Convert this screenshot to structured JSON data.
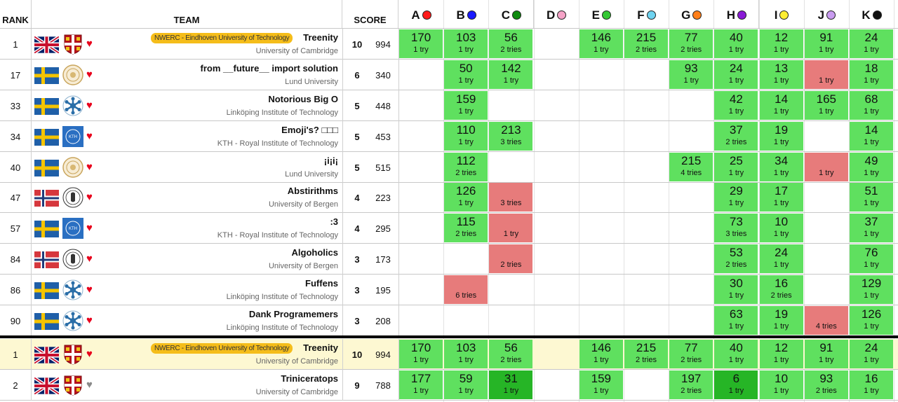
{
  "header": {
    "rank": "RANK",
    "team": "TEAM",
    "score": "SCORE",
    "problems": [
      {
        "letter": "A",
        "color": "#ff1a1a"
      },
      {
        "letter": "B",
        "color": "#1a1aff"
      },
      {
        "letter": "C",
        "color": "#0f8a0f"
      },
      {
        "letter": "D",
        "color": "#f5a3c7"
      },
      {
        "letter": "E",
        "color": "#34c734"
      },
      {
        "letter": "F",
        "color": "#6fd3f0"
      },
      {
        "letter": "G",
        "color": "#ff7f1a"
      },
      {
        "letter": "H",
        "color": "#8a1ad6"
      },
      {
        "letter": "I",
        "color": "#ffee33"
      },
      {
        "letter": "J",
        "color": "#c99cf0"
      },
      {
        "letter": "K",
        "color": "#111111"
      }
    ]
  },
  "rows": [
    {
      "rank": "1",
      "flag": "gb",
      "crest": "cambridge",
      "heart": "red",
      "badge": "NWERC - Eindhoven University of Technology",
      "name": "Treenity",
      "university": "University of Cambridge",
      "solved": "10",
      "penalty": "994",
      "highlight": false,
      "cells": [
        [
          "ok",
          "170",
          "1 try"
        ],
        [
          "ok",
          "103",
          "1 try"
        ],
        [
          "ok",
          "56",
          "2 tries"
        ],
        [
          "none",
          "",
          ""
        ],
        [
          "ok",
          "146",
          "1 try"
        ],
        [
          "ok",
          "215",
          "2 tries"
        ],
        [
          "ok",
          "77",
          "2 tries"
        ],
        [
          "ok",
          "40",
          "1 try"
        ],
        [
          "ok",
          "12",
          "1 try"
        ],
        [
          "ok",
          "91",
          "1 try"
        ],
        [
          "ok",
          "24",
          "1 try"
        ]
      ]
    },
    {
      "rank": "17",
      "flag": "se",
      "crest": "lund",
      "heart": "red",
      "badge": "",
      "name": "from __future__ import solution",
      "university": "Lund University",
      "solved": "6",
      "penalty": "340",
      "highlight": false,
      "cells": [
        [
          "none",
          "",
          ""
        ],
        [
          "ok",
          "50",
          "1 try"
        ],
        [
          "ok",
          "142",
          "1 try"
        ],
        [
          "none",
          "",
          ""
        ],
        [
          "none",
          "",
          ""
        ],
        [
          "none",
          "",
          ""
        ],
        [
          "ok",
          "93",
          "1 try"
        ],
        [
          "ok",
          "24",
          "1 try"
        ],
        [
          "ok",
          "13",
          "1 try"
        ],
        [
          "fail",
          "",
          "1 try"
        ],
        [
          "ok",
          "18",
          "1 try"
        ]
      ]
    },
    {
      "rank": "33",
      "flag": "se",
      "crest": "liu",
      "heart": "red",
      "badge": "",
      "name": "Notorious Big O",
      "university": "Linköping Institute of Technology",
      "solved": "5",
      "penalty": "448",
      "highlight": false,
      "cells": [
        [
          "none",
          "",
          ""
        ],
        [
          "ok",
          "159",
          "1 try"
        ],
        [
          "none",
          "",
          ""
        ],
        [
          "none",
          "",
          ""
        ],
        [
          "none",
          "",
          ""
        ],
        [
          "none",
          "",
          ""
        ],
        [
          "none",
          "",
          ""
        ],
        [
          "ok",
          "42",
          "1 try"
        ],
        [
          "ok",
          "14",
          "1 try"
        ],
        [
          "ok",
          "165",
          "1 try"
        ],
        [
          "ok",
          "68",
          "1 try"
        ]
      ]
    },
    {
      "rank": "34",
      "flag": "se",
      "crest": "kth",
      "heart": "red",
      "badge": "",
      "name": "Emoji's? □□□",
      "university": "KTH - Royal Institute of Technology",
      "solved": "5",
      "penalty": "453",
      "highlight": false,
      "cells": [
        [
          "none",
          "",
          ""
        ],
        [
          "ok",
          "110",
          "1 try"
        ],
        [
          "ok",
          "213",
          "3 tries"
        ],
        [
          "none",
          "",
          ""
        ],
        [
          "none",
          "",
          ""
        ],
        [
          "none",
          "",
          ""
        ],
        [
          "none",
          "",
          ""
        ],
        [
          "ok",
          "37",
          "2 tries"
        ],
        [
          "ok",
          "19",
          "1 try"
        ],
        [
          "none",
          "",
          ""
        ],
        [
          "ok",
          "14",
          "1 try"
        ]
      ]
    },
    {
      "rank": "40",
      "flag": "se",
      "crest": "lund",
      "heart": "red",
      "badge": "",
      "name": "¡i¡i¡",
      "university": "Lund University",
      "solved": "5",
      "penalty": "515",
      "highlight": false,
      "cells": [
        [
          "none",
          "",
          ""
        ],
        [
          "ok",
          "112",
          "2 tries"
        ],
        [
          "none",
          "",
          ""
        ],
        [
          "none",
          "",
          ""
        ],
        [
          "none",
          "",
          ""
        ],
        [
          "none",
          "",
          ""
        ],
        [
          "ok",
          "215",
          "4 tries"
        ],
        [
          "ok",
          "25",
          "1 try"
        ],
        [
          "ok",
          "34",
          "1 try"
        ],
        [
          "fail",
          "",
          "1 try"
        ],
        [
          "ok",
          "49",
          "1 try"
        ]
      ]
    },
    {
      "rank": "47",
      "flag": "no",
      "crest": "bergen",
      "heart": "red",
      "badge": "",
      "name": "Abstirithms",
      "university": "University of Bergen",
      "solved": "4",
      "penalty": "223",
      "highlight": false,
      "cells": [
        [
          "none",
          "",
          ""
        ],
        [
          "ok",
          "126",
          "1 try"
        ],
        [
          "fail",
          "",
          "3 tries"
        ],
        [
          "none",
          "",
          ""
        ],
        [
          "none",
          "",
          ""
        ],
        [
          "none",
          "",
          ""
        ],
        [
          "none",
          "",
          ""
        ],
        [
          "ok",
          "29",
          "1 try"
        ],
        [
          "ok",
          "17",
          "1 try"
        ],
        [
          "none",
          "",
          ""
        ],
        [
          "ok",
          "51",
          "1 try"
        ]
      ]
    },
    {
      "rank": "57",
      "flag": "se",
      "crest": "kth",
      "heart": "red",
      "badge": "",
      "name": ":3",
      "university": "KTH - Royal Institute of Technology",
      "solved": "4",
      "penalty": "295",
      "highlight": false,
      "cells": [
        [
          "none",
          "",
          ""
        ],
        [
          "ok",
          "115",
          "2 tries"
        ],
        [
          "fail",
          "",
          "1 try"
        ],
        [
          "none",
          "",
          ""
        ],
        [
          "none",
          "",
          ""
        ],
        [
          "none",
          "",
          ""
        ],
        [
          "none",
          "",
          ""
        ],
        [
          "ok",
          "73",
          "3 tries"
        ],
        [
          "ok",
          "10",
          "1 try"
        ],
        [
          "none",
          "",
          ""
        ],
        [
          "ok",
          "37",
          "1 try"
        ]
      ]
    },
    {
      "rank": "84",
      "flag": "no",
      "crest": "bergen",
      "heart": "red",
      "badge": "",
      "name": "Algoholics",
      "university": "University of Bergen",
      "solved": "3",
      "penalty": "173",
      "highlight": false,
      "cells": [
        [
          "none",
          "",
          ""
        ],
        [
          "none",
          "",
          ""
        ],
        [
          "fail",
          "",
          "2 tries"
        ],
        [
          "none",
          "",
          ""
        ],
        [
          "none",
          "",
          ""
        ],
        [
          "none",
          "",
          ""
        ],
        [
          "none",
          "",
          ""
        ],
        [
          "ok",
          "53",
          "2 tries"
        ],
        [
          "ok",
          "24",
          "1 try"
        ],
        [
          "none",
          "",
          ""
        ],
        [
          "ok",
          "76",
          "1 try"
        ]
      ]
    },
    {
      "rank": "86",
      "flag": "se",
      "crest": "liu",
      "heart": "red",
      "badge": "",
      "name": "Fuffens",
      "university": "Linköping Institute of Technology",
      "solved": "3",
      "penalty": "195",
      "highlight": false,
      "cells": [
        [
          "none",
          "",
          ""
        ],
        [
          "fail",
          "",
          "6 tries"
        ],
        [
          "none",
          "",
          ""
        ],
        [
          "none",
          "",
          ""
        ],
        [
          "none",
          "",
          ""
        ],
        [
          "none",
          "",
          ""
        ],
        [
          "none",
          "",
          ""
        ],
        [
          "ok",
          "30",
          "1 try"
        ],
        [
          "ok",
          "16",
          "2 tries"
        ],
        [
          "none",
          "",
          ""
        ],
        [
          "ok",
          "129",
          "1 try"
        ]
      ]
    },
    {
      "rank": "90",
      "flag": "se",
      "crest": "liu",
      "heart": "red",
      "badge": "",
      "name": "Dank Programemers",
      "university": "Linköping Institute of Technology",
      "solved": "3",
      "penalty": "208",
      "highlight": false,
      "cells": [
        [
          "none",
          "",
          ""
        ],
        [
          "none",
          "",
          ""
        ],
        [
          "none",
          "",
          ""
        ],
        [
          "none",
          "",
          ""
        ],
        [
          "none",
          "",
          ""
        ],
        [
          "none",
          "",
          ""
        ],
        [
          "none",
          "",
          ""
        ],
        [
          "ok",
          "63",
          "1 try"
        ],
        [
          "ok",
          "19",
          "1 try"
        ],
        [
          "fail",
          "",
          "4 tries"
        ],
        [
          "ok",
          "126",
          "1 try"
        ]
      ]
    },
    {
      "rank": "1",
      "flag": "gb",
      "crest": "cambridge",
      "heart": "red",
      "badge": "NWERC - Eindhoven University of Technology",
      "name": "Treenity",
      "university": "University of Cambridge",
      "solved": "10",
      "penalty": "994",
      "highlight": true,
      "cells": [
        [
          "ok",
          "170",
          "1 try"
        ],
        [
          "ok",
          "103",
          "1 try"
        ],
        [
          "ok",
          "56",
          "2 tries"
        ],
        [
          "none",
          "",
          ""
        ],
        [
          "ok",
          "146",
          "1 try"
        ],
        [
          "ok",
          "215",
          "2 tries"
        ],
        [
          "ok",
          "77",
          "2 tries"
        ],
        [
          "ok",
          "40",
          "1 try"
        ],
        [
          "ok",
          "12",
          "1 try"
        ],
        [
          "ok",
          "91",
          "1 try"
        ],
        [
          "ok",
          "24",
          "1 try"
        ]
      ]
    },
    {
      "rank": "2",
      "flag": "gb",
      "crest": "cambridge",
      "heart": "grey",
      "badge": "",
      "name": "Triniceratops",
      "university": "University of Cambridge",
      "solved": "9",
      "penalty": "788",
      "highlight": false,
      "cells": [
        [
          "ok",
          "177",
          "1 try"
        ],
        [
          "ok",
          "59",
          "1 try"
        ],
        [
          "first",
          "31",
          "1 try"
        ],
        [
          "none",
          "",
          ""
        ],
        [
          "ok",
          "159",
          "1 try"
        ],
        [
          "none",
          "",
          ""
        ],
        [
          "ok",
          "197",
          "2 tries"
        ],
        [
          "first",
          "6",
          "1 try"
        ],
        [
          "ok",
          "10",
          "1 try"
        ],
        [
          "ok",
          "93",
          "2 tries"
        ],
        [
          "ok",
          "16",
          "1 try"
        ]
      ]
    }
  ]
}
